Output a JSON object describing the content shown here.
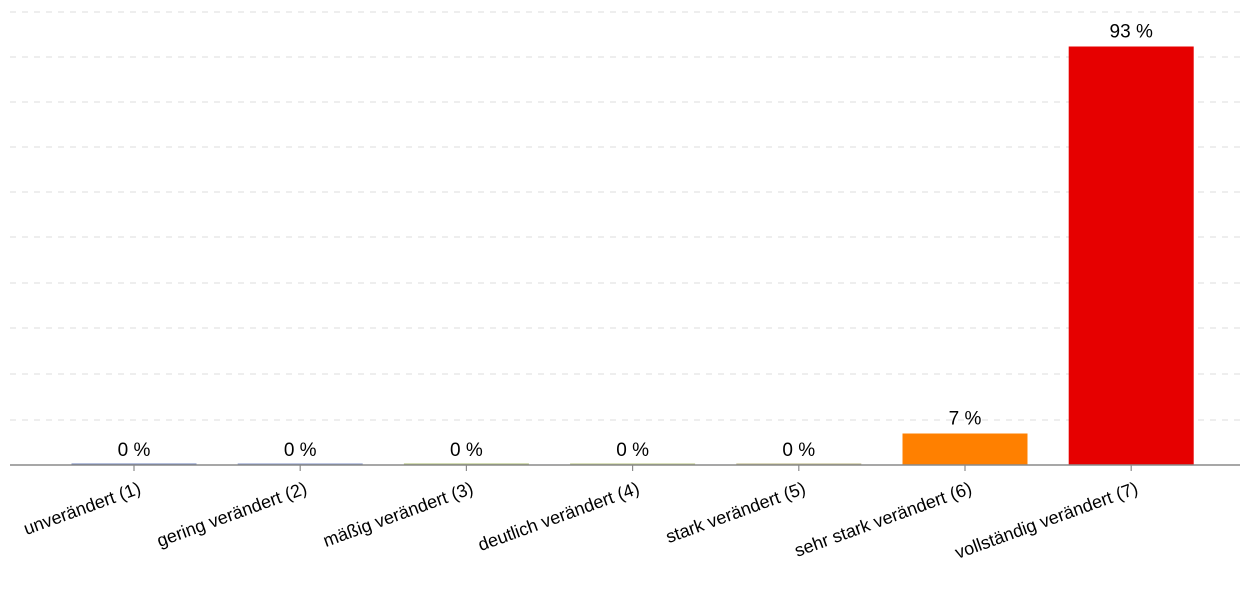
{
  "chart_data": {
    "type": "bar",
    "title": "",
    "xlabel": "",
    "ylabel": "",
    "categories": [
      "unverändert (1)",
      "gering verändert (2)",
      "mäßig verändert (3)",
      "deutlich verändert (4)",
      "stark verändert (5)",
      "sehr stark verändert (6)",
      "vollständig verändert (7)"
    ],
    "values": [
      0,
      0,
      0,
      0,
      0,
      7,
      93
    ],
    "value_labels": [
      "0 %",
      "0 %",
      "0 %",
      "0 %",
      "0 %",
      "7 %",
      "93 %"
    ],
    "colors": [
      "#6a7fb8",
      "#7d8fc4",
      "#a7b86a",
      "#b4c078",
      "#b7b07a",
      "#ff8000",
      "#e60000"
    ],
    "ylim": [
      0,
      100
    ],
    "grid": true,
    "legend": "none"
  }
}
